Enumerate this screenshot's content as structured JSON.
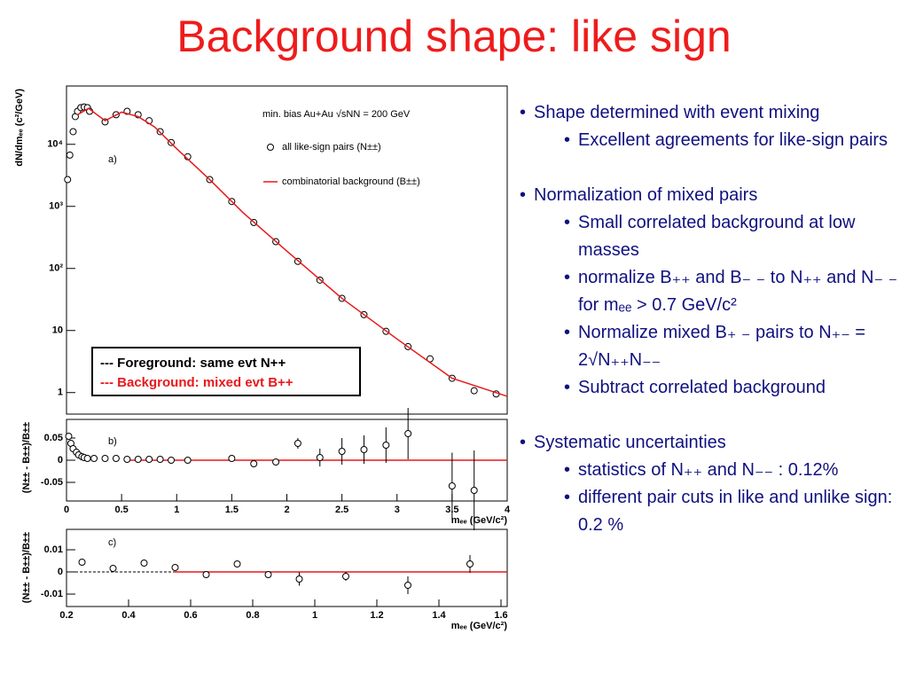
{
  "title": "Background shape: like sign",
  "legend_box": [
    "--- Foreground: same evt  N++",
    "--- Background: mixed evt B++"
  ],
  "bullets": [
    {
      "text": "Shape determined with event mixing",
      "items": [
        "Excellent agreements for like-sign pairs"
      ]
    },
    {
      "text": "Normalization of mixed pairs",
      "items": [
        "Small correlated background at low masses",
        "normalize B₊₊ and B₋ ₋ to N₊₊ and N₋ ₋ for mₑₑ > 0.7 GeV/c²",
        "Normalize mixed B₊ ₋ pairs to N₊₋ = 2√N₊₊N₋₋",
        "Subtract correlated background"
      ]
    },
    {
      "text": "Systematic uncertainties",
      "items": [
        "statistics of N₊₊ and N₋₋ : 0.12%",
        "different pair cuts in like and unlike sign: 0.2 %"
      ]
    }
  ],
  "chart_data": [
    {
      "type": "scatter",
      "annotation": "a)",
      "note": "min. bias Au+Au √sNN = 200 GeV",
      "y_label": "dN/dmₑₑ (c²/GeV)",
      "yscale": "log",
      "xlim": [
        0,
        4
      ],
      "ylim": [
        0.45,
        87000
      ],
      "yticks": [
        1,
        10,
        {
          "value": 100,
          "label": "10²"
        },
        {
          "value": 1000,
          "label": "10³"
        },
        {
          "value": 10000,
          "label": "10⁴"
        }
      ],
      "series": [
        {
          "name": "all like-sign pairs (N±±)",
          "mode": "markers",
          "color": "#000000",
          "x": [
            0.01,
            0.03,
            0.06,
            0.08,
            0.1,
            0.13,
            0.16,
            0.19,
            0.21,
            0.35,
            0.45,
            0.55,
            0.65,
            0.75,
            0.85,
            0.95,
            1.1,
            1.3,
            1.5,
            1.7,
            1.9,
            2.1,
            2.3,
            2.5,
            2.7,
            2.9,
            3.1,
            3.3,
            3.5,
            3.7,
            3.9
          ],
          "values": [
            2700,
            6700,
            16000,
            28000,
            34000,
            39000,
            40000,
            39000,
            34000,
            23000,
            30000,
            34000,
            30000,
            24000,
            16000,
            10700,
            6300,
            2700,
            1200,
            550,
            270,
            130,
            65,
            33,
            18,
            9.7,
            5.5,
            3.5,
            1.7,
            1.07,
            0.95
          ]
        },
        {
          "name": "combinatorial background (B±±)",
          "mode": "line",
          "color": "#e8191b",
          "x": [
            0.1,
            0.2,
            0.35,
            0.5,
            0.65,
            0.8,
            1.0,
            1.3,
            1.6,
            2.0,
            2.5,
            3.0,
            3.5,
            4.0
          ],
          "values": [
            30000,
            38000,
            24000,
            33000,
            28000,
            19000,
            8500,
            2700,
            800,
            190,
            33,
            7.3,
            1.7,
            0.87
          ]
        }
      ]
    },
    {
      "type": "scatter",
      "annotation": "b)",
      "y_label": "(N±± - B±±)/B±±",
      "x_label": "mₑₑ (GeV/c²)",
      "xlim": [
        0,
        4
      ],
      "ylim": [
        -0.092,
        0.092
      ],
      "xticks": [
        0,
        0.5,
        1,
        1.5,
        2,
        2.5,
        3,
        3.5,
        4
      ],
      "yticks": [
        -0.05,
        0,
        0.05
      ],
      "series": [
        {
          "mode": "markers",
          "color": "#000000",
          "x": [
            0.02,
            0.04,
            0.06,
            0.09,
            0.11,
            0.14,
            0.16,
            0.19,
            0.25,
            0.35,
            0.45,
            0.55,
            0.65,
            0.75,
            0.85,
            0.95,
            1.1,
            1.5,
            1.7,
            1.9,
            2.1,
            2.3,
            2.5,
            2.7,
            2.9,
            3.1,
            3.5,
            3.7
          ],
          "values": [
            0.054,
            0.038,
            0.026,
            0.018,
            0.012,
            0.008,
            0.006,
            0.004,
            0.004,
            0.004,
            0.004,
            0.002,
            0.002,
            0.002,
            0.002,
            0,
            0,
            0.004,
            -0.008,
            -0.004,
            0.038,
            0.006,
            0.02,
            0.024,
            0.034,
            0.06,
            -0.058,
            -0.068
          ],
          "errors": [
            0.002,
            0.002,
            0.002,
            0.002,
            0.001,
            0.001,
            0.001,
            0.001,
            0.001,
            0.001,
            0.001,
            0.001,
            0.001,
            0.001,
            0.001,
            0.001,
            0.001,
            0.002,
            0.003,
            0.004,
            0.012,
            0.02,
            0.03,
            0.032,
            0.04,
            0.058,
            0.075,
            0.09
          ]
        }
      ]
    },
    {
      "type": "scatter",
      "annotation": "c)",
      "y_label": "(N±± - B±±)/B±±",
      "x_label": "mₑₑ (GeV/c²)",
      "xlim": [
        0.2,
        1.62
      ],
      "ylim": [
        -0.0156,
        0.0192
      ],
      "xticks": [
        0.2,
        0.4,
        0.6,
        0.8,
        1,
        1.2,
        1.4,
        1.6
      ],
      "yticks": [
        -0.01,
        0,
        0.01
      ],
      "series": [
        {
          "mode": "markers",
          "color": "#000000",
          "x": [
            0.25,
            0.35,
            0.45,
            0.55,
            0.65,
            0.75,
            0.85,
            0.95,
            1.1,
            1.3,
            1.5
          ],
          "values": [
            0.0044,
            0.0016,
            0.004,
            0.002,
            -0.0012,
            0.0036,
            -0.0012,
            -0.0032,
            -0.002,
            -0.006,
            0.0036
          ],
          "errors": [
            0.0005,
            0.0005,
            0.0005,
            0.0005,
            0.0008,
            0.0008,
            0.0015,
            0.003,
            0.002,
            0.004,
            0.004
          ]
        }
      ]
    }
  ]
}
